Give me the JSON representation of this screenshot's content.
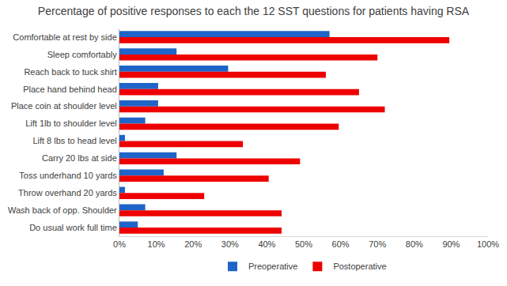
{
  "chart_data": {
    "type": "bar",
    "orientation": "horizontal",
    "title": "Percentage of positive responses to each the 12 SST questions for patients having RSA",
    "categories": [
      "Comfortable at rest by side",
      "Sleep comfortably",
      "Reach back to tuck shirt",
      "Place hand behind head",
      "Place coin at shoulder level",
      "Lift 1lb to shoulder level",
      "Lift 8 lbs to head level",
      "Carry 20 lbs at side",
      "Toss underhand 10 yards",
      "Throw overhand 20 yards",
      "Wash back of opp. Shoulder",
      "Do usual work full time"
    ],
    "series": [
      {
        "name": "Preoperative",
        "color": "#1f64c8",
        "values": [
          57,
          15.5,
          29.5,
          10.5,
          10.5,
          7,
          1.5,
          15.5,
          12,
          1.5,
          7,
          5
        ]
      },
      {
        "name": "Postoperative",
        "color": "#ee0000",
        "values": [
          89.5,
          70,
          56,
          65,
          72,
          59.5,
          33.5,
          49,
          40.5,
          23,
          44,
          44
        ]
      }
    ],
    "xlim": [
      0,
      100
    ],
    "xticks": [
      {
        "value": 0,
        "label": "0%"
      },
      {
        "value": 10,
        "label": "10%"
      },
      {
        "value": 20,
        "label": "20%"
      },
      {
        "value": 30,
        "label": "30%"
      },
      {
        "value": 40,
        "label": "40%"
      },
      {
        "value": 50,
        "label": "50%"
      },
      {
        "value": 60,
        "label": "60%"
      },
      {
        "value": 70,
        "label": "70%"
      },
      {
        "value": 80,
        "label": "80%"
      },
      {
        "value": 90,
        "label": "90%"
      },
      {
        "value": 100,
        "label": "100%"
      }
    ],
    "grid": false,
    "legend": "bottom"
  }
}
